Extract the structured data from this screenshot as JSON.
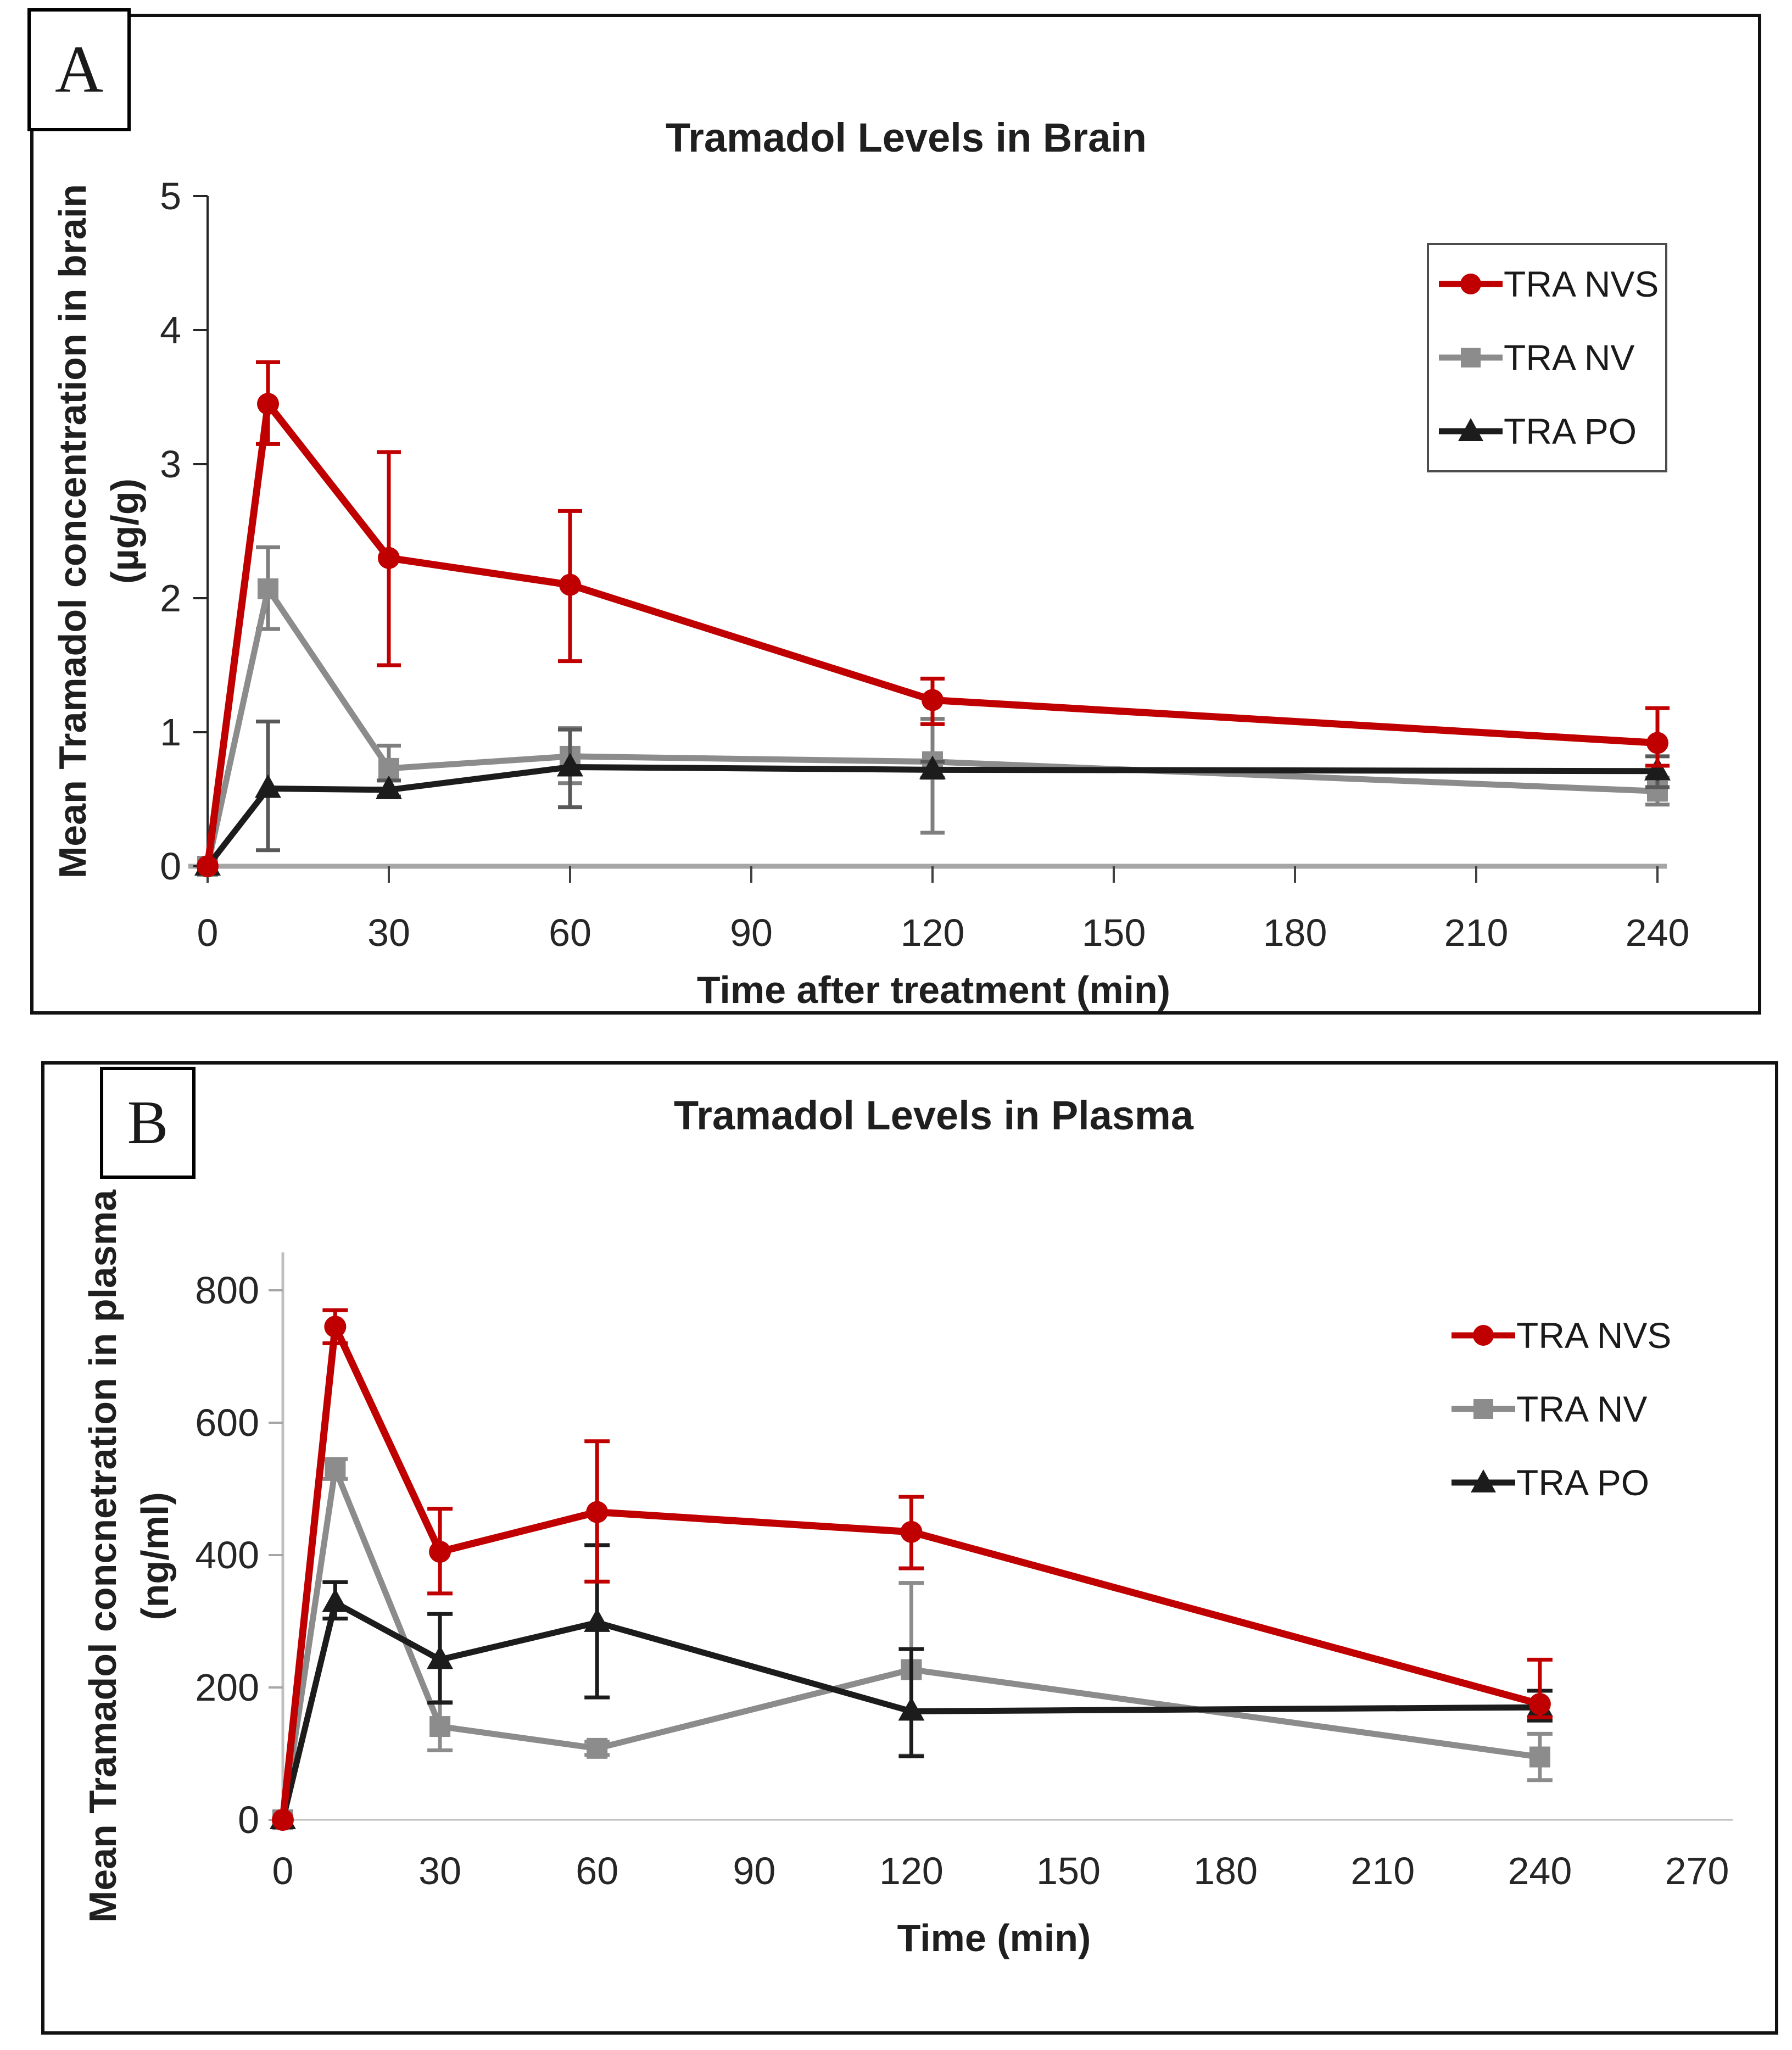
{
  "panels": {
    "a_letter": "A",
    "b_letter": "B"
  },
  "colors": {
    "nvs_red": "#C00000",
    "nv_gray": "#8C8C8C",
    "po_black": "#1C1C1C",
    "axis_gray_a": "#A6A6A6",
    "axis_gray_b": "#BFBFBF",
    "tick_dark": "#404040"
  },
  "chart_data": [
    {
      "type": "line",
      "panel_label": "A",
      "title": "Tramadol Levels in Brain",
      "xlabel": "Time after treatment (min)",
      "ylabel_lines": [
        "Mean Tramadol concentration in brain",
        "(µg/g)"
      ],
      "x": [
        0,
        10,
        30,
        60,
        120,
        240
      ],
      "xlim": [
        0,
        240
      ],
      "x_ticks": [
        0,
        30,
        60,
        90,
        120,
        150,
        180,
        210,
        240
      ],
      "ylim": [
        0,
        5
      ],
      "y_ticks": [
        0,
        1,
        2,
        3,
        4,
        5
      ],
      "grid": false,
      "legend_position": "upper-right",
      "legend_border": true,
      "series": [
        {
          "name": "TRA NVS",
          "color": "#C00000",
          "err_color": "#C00000",
          "marker": "circle",
          "values": [
            0,
            3.45,
            2.3,
            2.1,
            1.24,
            0.92
          ],
          "err_up": [
            0,
            0.31,
            0.79,
            0.55,
            0.16,
            0.26
          ],
          "err_down": [
            0,
            0.3,
            0.8,
            0.57,
            0.18,
            0.17
          ]
        },
        {
          "name": "TRA NV",
          "color": "#8C8C8C",
          "err_color": "#7F7F7F",
          "marker": "square",
          "values": [
            0,
            2.07,
            0.73,
            0.82,
            0.78,
            0.56
          ],
          "err_up": [
            0,
            0.31,
            0.17,
            0.21,
            0.32,
            0.1
          ],
          "err_down": [
            0,
            0.3,
            0.15,
            0.2,
            0.53,
            0.1
          ]
        },
        {
          "name": "TRA PO",
          "color": "#1C1C1C",
          "err_color": "#595959",
          "marker": "triangle",
          "values": [
            0,
            0.58,
            0.57,
            0.74,
            0.72,
            0.71
          ],
          "err_up": [
            0,
            0.5,
            0.07,
            0.28,
            0.06,
            0.11
          ],
          "err_down": [
            0,
            0.46,
            0.05,
            0.3,
            0.06,
            0.12
          ]
        }
      ]
    },
    {
      "type": "line",
      "panel_label": "B",
      "title": "Tramadol Levels in Plasma",
      "xlabel": "Time (min)",
      "ylabel_lines": [
        "Mean Tramadol concnetration in plasma",
        "(ng/ml)"
      ],
      "x": [
        0,
        10,
        30,
        60,
        120,
        240
      ],
      "xlim": [
        0,
        270
      ],
      "x_ticks": [
        0,
        30,
        60,
        90,
        120,
        150,
        180,
        210,
        240,
        270
      ],
      "ylim": [
        0,
        800
      ],
      "y_ticks": [
        0,
        200,
        400,
        600,
        800
      ],
      "grid": false,
      "legend_position": "upper-right",
      "legend_border": false,
      "series": [
        {
          "name": "TRA NVS",
          "color": "#C00000",
          "err_color": "#C00000",
          "marker": "circle",
          "values": [
            0,
            745,
            405,
            465,
            435,
            175
          ],
          "err_up": [
            0,
            25,
            65,
            107,
            53,
            67
          ],
          "err_down": [
            0,
            25,
            63,
            105,
            55,
            20
          ]
        },
        {
          "name": "TRA NV",
          "color": "#8C8C8C",
          "err_color": "#8C8C8C",
          "marker": "square",
          "values": [
            0,
            530,
            141,
            108,
            227,
            95
          ],
          "err_up": [
            0,
            15,
            37,
            10,
            131,
            35
          ],
          "err_down": [
            0,
            15,
            36,
            10,
            130,
            35
          ]
        },
        {
          "name": "TRA PO",
          "color": "#1C1C1C",
          "err_color": "#1C1C1C",
          "marker": "triangle",
          "values": [
            0,
            328,
            242,
            298,
            164,
            170
          ],
          "err_up": [
            0,
            31,
            69,
            117,
            94,
            25
          ],
          "err_down": [
            0,
            24,
            65,
            113,
            68,
            20
          ]
        }
      ]
    }
  ]
}
